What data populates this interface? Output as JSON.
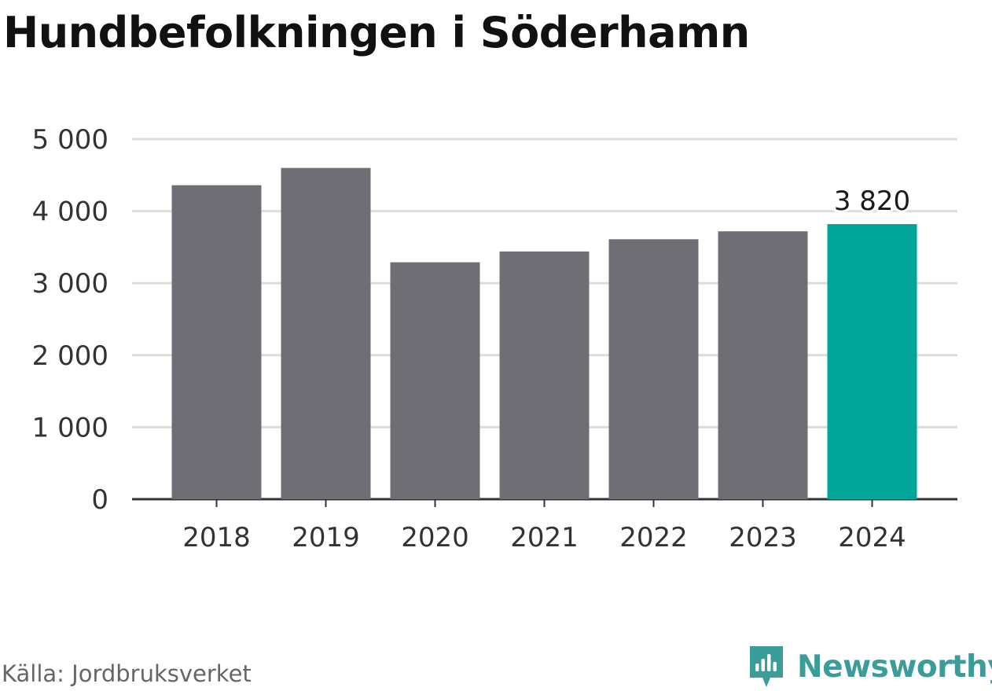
{
  "title": "Hundbefolkningen i Söderhamn",
  "source": "Källa: Jordbruksverket",
  "brand": {
    "name": "Newsworthy",
    "icon": "newsworthy-logo-icon",
    "color": "#3a9d9a"
  },
  "colors": {
    "bar": "#6f6e74",
    "highlight": "#00a59a",
    "grid": "#dcdcdc",
    "axis": "#333333",
    "text": "#333333"
  },
  "chart_data": {
    "type": "bar",
    "categories": [
      "2018",
      "2019",
      "2020",
      "2021",
      "2022",
      "2023",
      "2024"
    ],
    "values": [
      4360,
      4600,
      3290,
      3440,
      3610,
      3720,
      3820
    ],
    "highlight_index": 6,
    "data_labels": [
      {
        "index": 6,
        "text": "3 820"
      }
    ],
    "yticks": [
      {
        "value": 0,
        "label": "0"
      },
      {
        "value": 1000,
        "label": "1 000"
      },
      {
        "value": 2000,
        "label": "2 000"
      },
      {
        "value": 3000,
        "label": "3 000"
      },
      {
        "value": 4000,
        "label": "4 000"
      },
      {
        "value": 5000,
        "label": "5 000"
      }
    ],
    "ylim": [
      0,
      5000
    ],
    "grid": true,
    "legend": false
  }
}
